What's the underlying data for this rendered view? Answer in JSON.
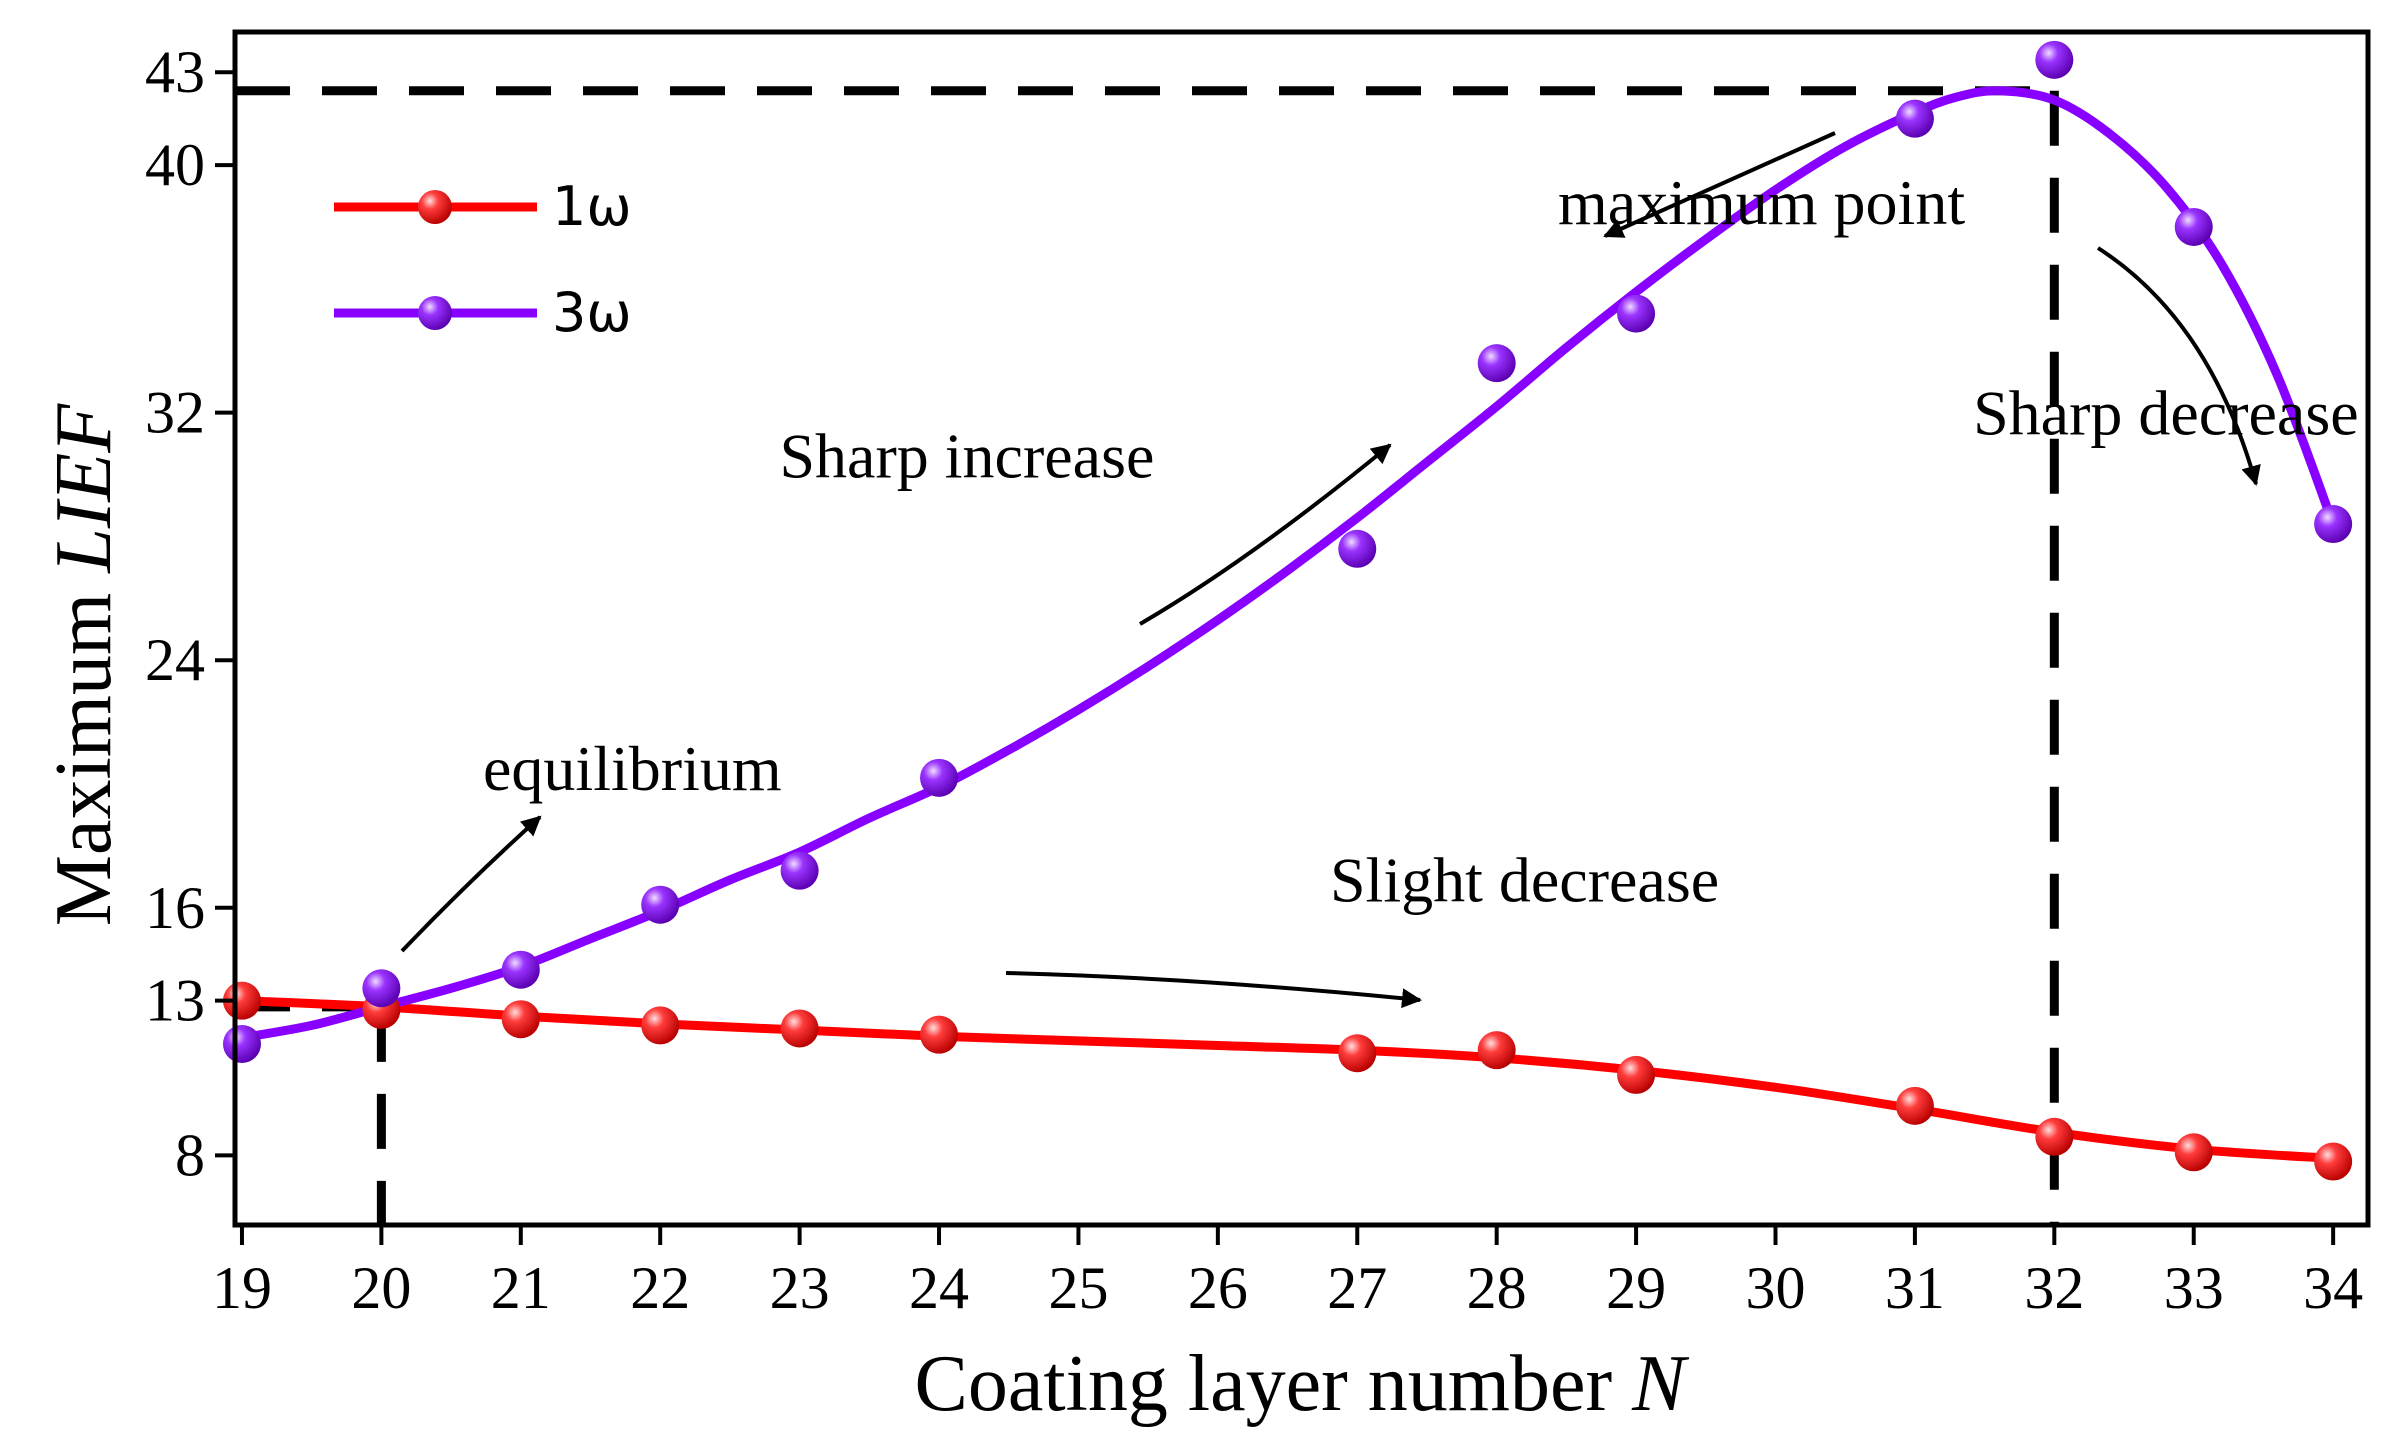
{
  "chart_data": {
    "type": "line",
    "xlabel": "Coating layer number",
    "xlabel_var": "N",
    "ylabel": "Maximum",
    "ylabel_var": "LIEF",
    "xlim": [
      18.95,
      34.25
    ],
    "ylim": [
      5.75,
      44.3
    ],
    "x_ticks": [
      19,
      20,
      21,
      22,
      23,
      24,
      25,
      26,
      27,
      28,
      29,
      30,
      31,
      32,
      33,
      34
    ],
    "y_ticks": [
      8,
      13,
      16,
      24,
      32,
      40,
      43
    ],
    "legend_position": "top-left",
    "series": [
      {
        "name": "1ω",
        "color": "#ff0000",
        "x": [
          19,
          20,
          21,
          22,
          23,
          24,
          27,
          28,
          29,
          31,
          32,
          33,
          34
        ],
        "y": [
          13.0,
          12.7,
          12.4,
          12.2,
          12.1,
          11.9,
          11.3,
          11.4,
          10.6,
          9.6,
          8.6,
          8.1,
          7.8
        ],
        "curve_x": [
          19,
          20,
          21,
          22,
          23,
          24,
          25,
          26,
          27,
          28,
          29,
          30,
          31,
          32,
          33,
          34
        ],
        "curve_y": [
          13.0,
          12.8,
          12.5,
          12.25,
          12.05,
          11.85,
          11.7,
          11.55,
          11.4,
          11.15,
          10.75,
          10.2,
          9.5,
          8.75,
          8.2,
          7.9
        ]
      },
      {
        "name": "3ω",
        "color": "#8800ff",
        "x": [
          19,
          20,
          21,
          22,
          23,
          24,
          27,
          28,
          29,
          31,
          32,
          33,
          34
        ],
        "y": [
          11.6,
          13.4,
          14.0,
          16.1,
          17.2,
          20.2,
          27.6,
          33.6,
          35.2,
          41.5,
          43.4,
          38.0,
          28.4
        ],
        "curve_x": [
          19,
          19.5,
          20,
          20.5,
          21,
          21.5,
          22,
          22.5,
          23,
          23.5,
          24,
          24.5,
          25,
          25.5,
          26,
          26.5,
          27,
          27.5,
          28,
          28.5,
          29,
          29.5,
          30,
          30.5,
          31,
          31.3,
          31.6,
          32,
          32.4,
          32.8,
          33.2,
          33.6,
          34
        ],
        "curve_y": [
          11.8,
          12.2,
          12.8,
          13.4,
          14.1,
          15.0,
          15.9,
          16.9,
          17.8,
          18.9,
          19.9,
          21.1,
          22.4,
          23.8,
          25.3,
          26.9,
          28.6,
          30.4,
          32.2,
          34.1,
          35.9,
          37.6,
          39.2,
          40.6,
          41.7,
          42.2,
          42.4,
          42.1,
          41.0,
          39.3,
          36.8,
          33.2,
          28.4
        ]
      }
    ],
    "reference_lines": {
      "max_value": 42.4,
      "max_x": 32,
      "equilibrium_value": 12.8,
      "equilibrium_x": 20
    },
    "annotations": [
      {
        "text": "maximum point",
        "x": 29.9,
        "y": 38.1
      },
      {
        "text": "Sharp increase",
        "x": 24.2,
        "y": 29.9
      },
      {
        "text": "Sharp decrease",
        "x": 32.8,
        "y": 31.3
      },
      {
        "text": "equilibrium",
        "x": 21.8,
        "y": 19.8
      },
      {
        "text": "Slight decrease",
        "x": 28.2,
        "y": 16.2
      }
    ]
  }
}
